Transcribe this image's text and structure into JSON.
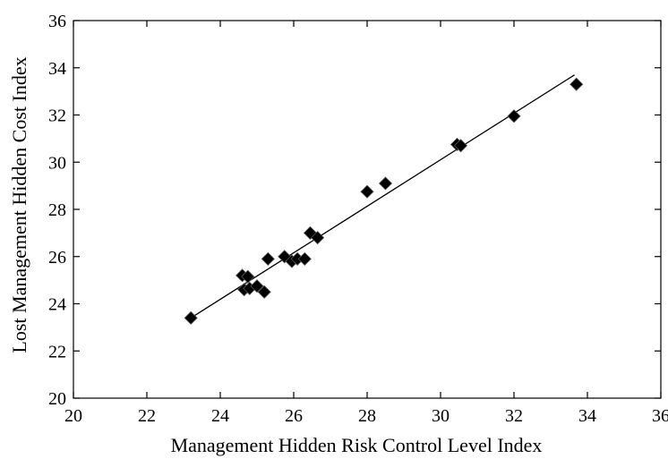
{
  "chart_data": {
    "type": "scatter",
    "title": "",
    "xlabel": "Management Hidden Risk Control Level Index",
    "ylabel": "Lost Management Hidden Cost Index",
    "xlim": [
      20,
      36
    ],
    "ylim": [
      20,
      36
    ],
    "xticks": [
      "20",
      "22",
      "24",
      "26",
      "28",
      "30",
      "32",
      "34",
      "36"
    ],
    "yticks": [
      "20",
      "22",
      "24",
      "26",
      "28",
      "30",
      "32",
      "34",
      "36"
    ],
    "grid": false,
    "legend": "none",
    "marker": "diamond",
    "marker_color": "#000000",
    "points": [
      {
        "x": 23.2,
        "y": 23.4
      },
      {
        "x": 24.6,
        "y": 25.2
      },
      {
        "x": 24.75,
        "y": 25.15
      },
      {
        "x": 24.65,
        "y": 24.6
      },
      {
        "x": 24.8,
        "y": 24.65
      },
      {
        "x": 25.0,
        "y": 24.75
      },
      {
        "x": 25.2,
        "y": 24.5
      },
      {
        "x": 25.3,
        "y": 25.9
      },
      {
        "x": 25.75,
        "y": 26.0
      },
      {
        "x": 25.95,
        "y": 25.8
      },
      {
        "x": 26.1,
        "y": 25.9
      },
      {
        "x": 26.3,
        "y": 25.9
      },
      {
        "x": 26.45,
        "y": 27.0
      },
      {
        "x": 26.65,
        "y": 26.8
      },
      {
        "x": 28.0,
        "y": 28.75
      },
      {
        "x": 28.5,
        "y": 29.1
      },
      {
        "x": 30.45,
        "y": 30.75
      },
      {
        "x": 30.55,
        "y": 30.7
      },
      {
        "x": 32.0,
        "y": 31.95
      },
      {
        "x": 33.7,
        "y": 33.3
      }
    ],
    "fit_line": {
      "x": [
        23.2,
        33.65
      ],
      "y": [
        23.4,
        33.7
      ]
    }
  }
}
